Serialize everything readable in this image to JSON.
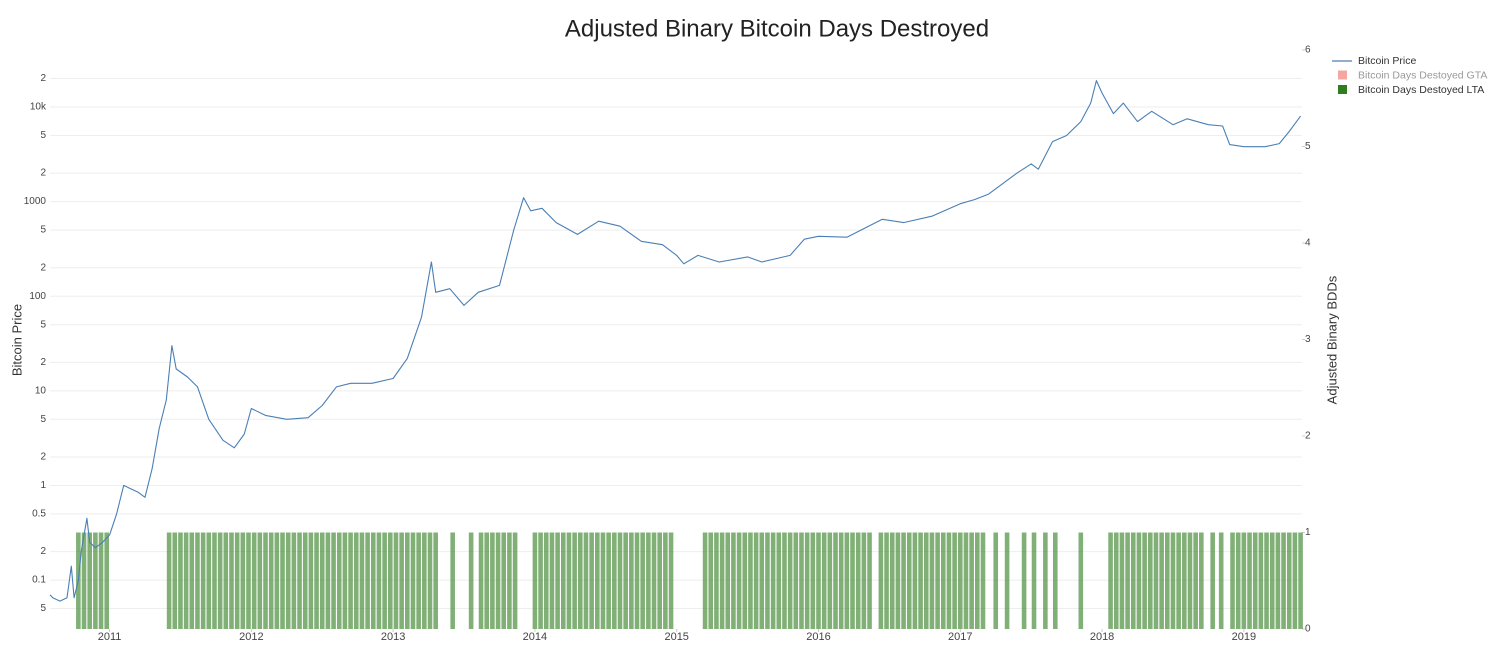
{
  "chart_data": {
    "type": "line",
    "title": "Adjusted Binary Bitcoin Days Destroyed",
    "ylabel": "Bitcoin Price",
    "y2label": "Adjusted Binary BDDs",
    "ylog": true,
    "grid": true,
    "legend": "top-right",
    "xlim": [
      2010.58,
      2019.41
    ],
    "xticks": [
      2011,
      2012,
      2013,
      2014,
      2015,
      2016,
      2017,
      2018,
      2019
    ],
    "ylim": [
      0.0304,
      40000
    ],
    "yticks": [
      {
        "value": 0.05,
        "label": "5"
      },
      0.1,
      {
        "value": 0.2,
        "label": "2"
      },
      0.5,
      1,
      2,
      5,
      10,
      {
        "value": 20,
        "label": "2"
      },
      {
        "value": 50,
        "label": "5"
      },
      100,
      {
        "value": 200,
        "label": "2"
      },
      {
        "value": 500,
        "label": "5"
      },
      1000,
      {
        "value": 2000,
        "label": "2"
      },
      {
        "value": 5000,
        "label": "5"
      },
      {
        "value": 10000,
        "label": "10k"
      },
      {
        "value": 20000,
        "label": "2"
      }
    ],
    "y2lim": [
      0,
      6
    ],
    "y2ticks": [
      0,
      1,
      2,
      3,
      4,
      5,
      6
    ],
    "series": [
      {
        "name": "Bitcoin Price",
        "type": "line",
        "color": "#4a7fb5",
        "x": [
          2010.58,
          2010.6,
          2010.65,
          2010.7,
          2010.73,
          2010.75,
          2010.78,
          2010.8,
          2010.84,
          2010.86,
          2010.9,
          2010.95,
          2011.0,
          2011.05,
          2011.1,
          2011.2,
          2011.25,
          2011.3,
          2011.35,
          2011.4,
          2011.44,
          2011.47,
          2011.55,
          2011.62,
          2011.7,
          2011.8,
          2011.88,
          2011.95,
          2012.0,
          2012.1,
          2012.25,
          2012.4,
          2012.5,
          2012.6,
          2012.7,
          2012.85,
          2013.0,
          2013.1,
          2013.2,
          2013.27,
          2013.3,
          2013.4,
          2013.5,
          2013.6,
          2013.75,
          2013.85,
          2013.92,
          2013.97,
          2014.05,
          2014.15,
          2014.3,
          2014.45,
          2014.6,
          2014.75,
          2014.9,
          2015.0,
          2015.05,
          2015.15,
          2015.3,
          2015.5,
          2015.6,
          2015.8,
          2015.9,
          2016.0,
          2016.2,
          2016.45,
          2016.6,
          2016.8,
          2017.0,
          2017.1,
          2017.2,
          2017.4,
          2017.5,
          2017.55,
          2017.65,
          2017.75,
          2017.85,
          2017.92,
          2017.96,
          2018.0,
          2018.08,
          2018.15,
          2018.25,
          2018.35,
          2018.5,
          2018.6,
          2018.75,
          2018.85,
          2018.9,
          2019.0,
          2019.15,
          2019.25,
          2019.32,
          2019.4
        ],
        "values": [
          0.07,
          0.065,
          0.06,
          0.065,
          0.14,
          0.065,
          0.1,
          0.2,
          0.45,
          0.25,
          0.22,
          0.25,
          0.3,
          0.5,
          1.0,
          0.85,
          0.75,
          1.5,
          4,
          8,
          30,
          17,
          14,
          11,
          5,
          3,
          2.5,
          3.5,
          6.5,
          5.5,
          5,
          5.2,
          7,
          11,
          12,
          12,
          13.5,
          22,
          60,
          230,
          110,
          120,
          80,
          110,
          130,
          500,
          1100,
          800,
          850,
          600,
          450,
          620,
          550,
          380,
          350,
          270,
          220,
          270,
          230,
          260,
          230,
          270,
          400,
          430,
          420,
          650,
          600,
          700,
          950,
          1050,
          1200,
          2000,
          2500,
          2200,
          4300,
          5000,
          7000,
          11000,
          19000,
          14000,
          8500,
          11000,
          7000,
          9000,
          6500,
          7500,
          6500,
          6300,
          4000,
          3800,
          3800,
          4100,
          5500,
          8000
        ]
      },
      {
        "name": "Bitcoin Days Destoyed GTA",
        "type": "bar",
        "axis": "y2",
        "color": "#f4a7a0",
        "visible": false
      },
      {
        "name": "Bitcoin Days Destoyed LTA",
        "type": "bar",
        "axis": "y2",
        "color": "#2e7d1e",
        "opacity": 0.6,
        "x": [
          2010.78,
          2010.82,
          2010.86,
          2010.9,
          2010.94,
          2010.98,
          2011.42,
          2011.46,
          2011.5,
          2011.54,
          2011.58,
          2011.62,
          2011.66,
          2011.7,
          2011.74,
          2011.78,
          2011.82,
          2011.86,
          2011.9,
          2011.94,
          2011.98,
          2012.02,
          2012.06,
          2012.1,
          2012.14,
          2012.18,
          2012.22,
          2012.26,
          2012.3,
          2012.34,
          2012.38,
          2012.42,
          2012.46,
          2012.5,
          2012.54,
          2012.58,
          2012.62,
          2012.66,
          2012.7,
          2012.74,
          2012.78,
          2012.82,
          2012.86,
          2012.9,
          2012.94,
          2012.98,
          2013.02,
          2013.06,
          2013.1,
          2013.14,
          2013.18,
          2013.22,
          2013.26,
          2013.3,
          2013.42,
          2013.55,
          2013.62,
          2013.66,
          2013.7,
          2013.74,
          2013.78,
          2013.82,
          2013.86,
          2014.0,
          2014.04,
          2014.08,
          2014.12,
          2014.16,
          2014.2,
          2014.24,
          2014.28,
          2014.32,
          2014.36,
          2014.4,
          2014.44,
          2014.48,
          2014.52,
          2014.56,
          2014.6,
          2014.64,
          2014.68,
          2014.72,
          2014.76,
          2014.8,
          2014.84,
          2014.88,
          2014.92,
          2014.96,
          2015.2,
          2015.24,
          2015.28,
          2015.32,
          2015.36,
          2015.4,
          2015.44,
          2015.48,
          2015.52,
          2015.56,
          2015.6,
          2015.64,
          2015.68,
          2015.72,
          2015.76,
          2015.8,
          2015.84,
          2015.88,
          2015.92,
          2015.96,
          2016.0,
          2016.04,
          2016.08,
          2016.12,
          2016.16,
          2016.2,
          2016.24,
          2016.28,
          2016.32,
          2016.36,
          2016.44,
          2016.48,
          2016.52,
          2016.56,
          2016.6,
          2016.64,
          2016.68,
          2016.72,
          2016.76,
          2016.8,
          2016.84,
          2016.88,
          2016.92,
          2016.96,
          2017.0,
          2017.04,
          2017.08,
          2017.12,
          2017.16,
          2017.25,
          2017.33,
          2017.45,
          2017.52,
          2017.6,
          2017.67,
          2017.85,
          2018.06,
          2018.1,
          2018.14,
          2018.18,
          2018.22,
          2018.26,
          2018.3,
          2018.34,
          2018.38,
          2018.42,
          2018.46,
          2018.5,
          2018.54,
          2018.58,
          2018.62,
          2018.66,
          2018.7,
          2018.78,
          2018.84,
          2018.92,
          2018.96,
          2019.0,
          2019.04,
          2019.08,
          2019.12,
          2019.16,
          2019.2,
          2019.24,
          2019.28,
          2019.32,
          2019.36,
          2019.4
        ],
        "values": [
          1,
          1,
          1,
          1,
          1,
          1,
          1,
          1,
          1,
          1,
          1,
          1,
          1,
          1,
          1,
          1,
          1,
          1,
          1,
          1,
          1,
          1,
          1,
          1,
          1,
          1,
          1,
          1,
          1,
          1,
          1,
          1,
          1,
          1,
          1,
          1,
          1,
          1,
          1,
          1,
          1,
          1,
          1,
          1,
          1,
          1,
          1,
          1,
          1,
          1,
          1,
          1,
          1,
          1,
          1,
          1,
          1,
          1,
          1,
          1,
          1,
          1,
          1,
          1,
          1,
          1,
          1,
          1,
          1,
          1,
          1,
          1,
          1,
          1,
          1,
          1,
          1,
          1,
          1,
          1,
          1,
          1,
          1,
          1,
          1,
          1,
          1,
          1,
          1,
          1,
          1,
          1,
          1,
          1,
          1,
          1,
          1,
          1,
          1,
          1,
          1,
          1,
          1,
          1,
          1,
          1,
          1,
          1,
          1,
          1,
          1,
          1,
          1,
          1,
          1,
          1,
          1,
          1,
          1,
          1,
          1,
          1,
          1,
          1,
          1,
          1,
          1,
          1,
          1,
          1,
          1,
          1,
          1,
          1,
          1,
          1,
          1,
          1,
          1,
          1,
          1,
          1,
          1,
          1,
          1,
          1,
          1,
          1,
          1,
          1,
          1,
          1,
          1,
          1,
          1,
          1,
          1,
          1,
          1,
          1,
          1,
          1,
          1,
          1,
          1,
          1,
          1,
          1,
          1,
          1,
          1,
          1,
          1,
          1,
          1,
          1
        ]
      }
    ]
  }
}
